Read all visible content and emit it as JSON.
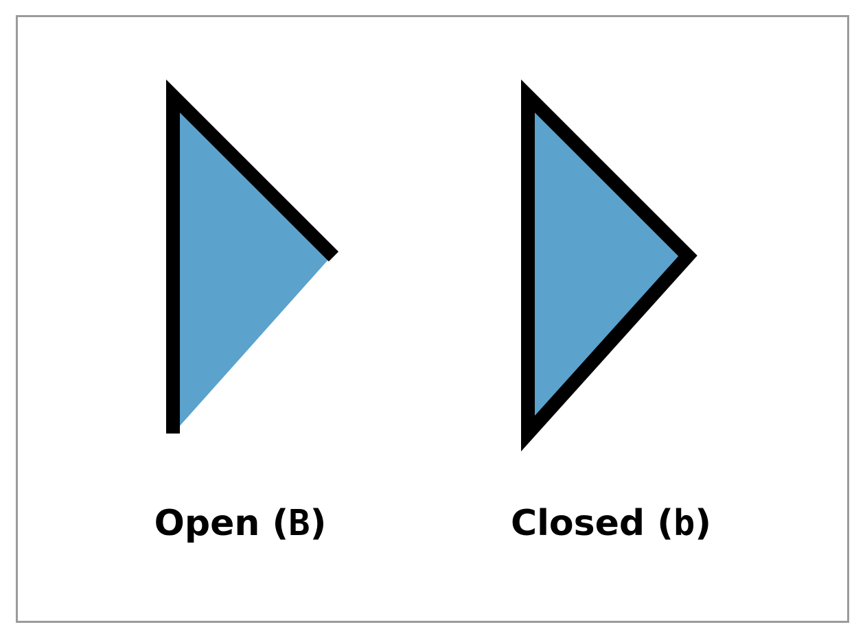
{
  "colors": {
    "fill": "#5ba2cc",
    "stroke": "#000000",
    "frame": "#9b9b9b",
    "background": "#ffffff"
  },
  "shapes": {
    "open": {
      "caption_word": "Open",
      "code": "B",
      "paren_open": "(",
      "paren_close": ")"
    },
    "closed": {
      "caption_word": "Closed",
      "code": "b",
      "paren_open": "(",
      "paren_close": ")"
    }
  }
}
